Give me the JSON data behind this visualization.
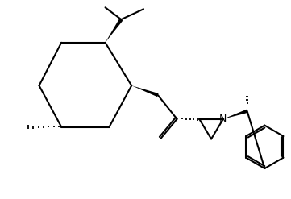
{
  "bg_color": "#ffffff",
  "line_color": "#000000",
  "line_width": 1.5,
  "figsize": [
    3.61,
    2.47
  ],
  "dpi": 100
}
